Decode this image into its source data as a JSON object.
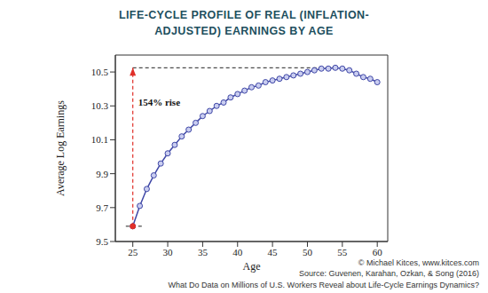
{
  "chart_data": {
    "type": "line",
    "title": "LIFE-CYCLE PROFILE OF REAL (INFLATION-ADJUSTED) EARNINGS BY AGE",
    "x_label": "Age",
    "y_label": "Average Log Earnings",
    "x": [
      25,
      26,
      27,
      28,
      29,
      30,
      31,
      32,
      33,
      34,
      35,
      36,
      37,
      38,
      39,
      40,
      41,
      42,
      43,
      44,
      45,
      46,
      47,
      48,
      49,
      50,
      51,
      52,
      53,
      54,
      55,
      56,
      57,
      58,
      59,
      60
    ],
    "values": [
      9.59,
      9.71,
      9.81,
      9.89,
      9.96,
      10.02,
      10.07,
      10.12,
      10.16,
      10.2,
      10.24,
      10.27,
      10.3,
      10.32,
      10.35,
      10.37,
      10.39,
      10.41,
      10.42,
      10.44,
      10.45,
      10.46,
      10.47,
      10.48,
      10.49,
      10.5,
      10.51,
      10.52,
      10.52,
      10.525,
      10.52,
      10.51,
      10.49,
      10.47,
      10.46,
      10.44
    ],
    "color": "#3f47a6",
    "marker": "o",
    "xlim": [
      22.5,
      61.5
    ],
    "ylim": [
      9.5,
      10.6
    ],
    "xticks": [
      25,
      30,
      35,
      40,
      45,
      50,
      55,
      60
    ],
    "yticks": [
      9.5,
      9.7,
      9.9,
      10.1,
      10.3,
      10.5
    ],
    "annotations": [
      {
        "text": "154% rise",
        "color": "#e0302a"
      }
    ],
    "footer": [
      "© Michael Kitces, www.kitces.com",
      "Source: Guvenen, Karahan, Ozkan, & Song (2016)",
      "What Do Data on Millions of U.S. Workers Reveal about Life-Cycle Earnings Dynamics?"
    ]
  }
}
